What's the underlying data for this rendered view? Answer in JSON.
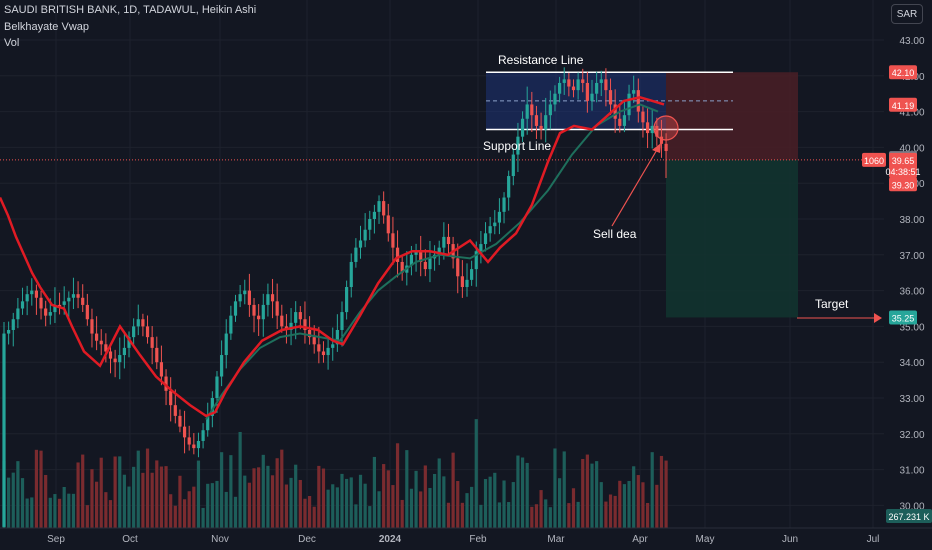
{
  "header": {
    "symbol_line": "SAUDI BRITISH BANK, 1D, TADAWUL, Heikin Ashi",
    "indicator": "Belkhayate Vwap",
    "volume": "Vol"
  },
  "currency": "SAR",
  "colors": {
    "background": "#131722",
    "grid": "#1e222d",
    "up": "#26a69a",
    "down": "#ef5350",
    "up_volume": "#1d5e5a",
    "down_volume": "#7a2b2f",
    "vwap": "#e01b24",
    "ma": "#1e6f5c",
    "range_box": "#1f3a8a",
    "stop_zone": "#4a1f26",
    "target_zone": "#12332f",
    "annotation": "#ffffff"
  },
  "chart_data": {
    "type": "candlestick",
    "y_axis": {
      "ticks": [
        "43.00",
        "42.00",
        "41.00",
        "40.00",
        "39.00",
        "38.00",
        "37.00",
        "36.00",
        "35.00",
        "34.00",
        "33.00",
        "32.00",
        "31.00",
        "30.00"
      ],
      "range": [
        29.7,
        43.5
      ]
    },
    "x_axis": {
      "ticks": [
        "Sep",
        "Oct",
        "Nov",
        "Dec",
        "2024",
        "Feb",
        "Mar",
        "Apr",
        "May",
        "Jun",
        "Jul"
      ]
    },
    "price_labels": [
      {
        "value": "42.10",
        "price": 42.1,
        "color": "#ef5350"
      },
      {
        "value": "41.19",
        "price": 41.19,
        "color": "#ef5350"
      },
      {
        "value": "39.70",
        "price": 39.7,
        "color": "#787b86"
      },
      {
        "value": "39.65",
        "price": 39.65,
        "color": "#ef5350"
      },
      {
        "value": "04:38:51",
        "price": 39.34,
        "color": "#ef5350"
      },
      {
        "value": "39.30",
        "price": 38.97,
        "color": "#ef5350"
      },
      {
        "value": "35.25",
        "price": 35.25,
        "color": "#26a69a"
      }
    ],
    "side_label": "1060",
    "volume_label": "267.231 K",
    "annotations": {
      "resistance": "Resistance Line",
      "support": "Support Line",
      "sell": "Sell dea",
      "target": "Target"
    },
    "levels": {
      "resistance": 42.1,
      "support": 40.5,
      "mid": 41.3,
      "entry": 39.65,
      "target": 35.25
    },
    "candles": {
      "start": 29.4,
      "closes": [
        34.8,
        34.9,
        35.2,
        35.5,
        35.7,
        35.9,
        36.0,
        35.8,
        35.5,
        35.3,
        35.4,
        35.6,
        35.6,
        35.7,
        35.8,
        35.9,
        35.8,
        35.6,
        35.2,
        34.8,
        34.6,
        34.5,
        34.3,
        34.1,
        34.0,
        34.2,
        34.4,
        34.7,
        35.0,
        35.2,
        35.0,
        34.7,
        34.4,
        34.0,
        33.6,
        33.2,
        32.8,
        32.5,
        32.2,
        31.9,
        31.7,
        31.6,
        31.8,
        32.1,
        32.5,
        33.0,
        33.6,
        34.2,
        34.8,
        35.3,
        35.7,
        35.9,
        36.0,
        35.6,
        35.3,
        35.2,
        35.6,
        35.9,
        35.7,
        35.3,
        35.0,
        34.9,
        35.1,
        35.4,
        35.2,
        34.9,
        34.7,
        34.5,
        34.3,
        34.2,
        34.4,
        34.5,
        34.9,
        35.4,
        36.1,
        36.8,
        37.2,
        37.4,
        37.7,
        38.0,
        38.2,
        38.5,
        38.1,
        37.6,
        37.2,
        36.8,
        36.5,
        36.7,
        37.0,
        37.1,
        36.8,
        36.6,
        36.9,
        37.0,
        37.2,
        37.5,
        37.3,
        36.9,
        36.4,
        36.1,
        36.3,
        36.6,
        37.1,
        37.3,
        37.6,
        37.8,
        37.9,
        38.2,
        38.6,
        39.2,
        39.8,
        40.3,
        40.8,
        41.2,
        40.9,
        40.6,
        40.5,
        40.9,
        41.2,
        41.5,
        41.8,
        41.9,
        41.7,
        41.6,
        41.9,
        41.8,
        41.3,
        41.5,
        41.8,
        41.9,
        41.6,
        41.2,
        40.8,
        40.6,
        40.9,
        41.5,
        41.6,
        41.0,
        40.7,
        40.4,
        40.6,
        40.3,
        40.1,
        39.9
      ]
    },
    "vwap_line": [
      [
        0,
        38.6
      ],
      [
        8,
        38.1
      ],
      [
        16,
        37.5
      ],
      [
        24,
        37.0
      ],
      [
        32,
        36.5
      ],
      [
        40,
        36.1
      ],
      [
        52,
        35.6
      ],
      [
        64,
        35.5
      ],
      [
        72,
        35.0
      ],
      [
        84,
        34.3
      ],
      [
        100,
        33.9
      ],
      [
        120,
        35.0
      ],
      [
        140,
        34.2
      ],
      [
        156,
        33.6
      ],
      [
        172,
        33.2
      ],
      [
        190,
        32.8
      ],
      [
        206,
        32.5
      ],
      [
        215,
        32.6
      ],
      [
        226,
        33.2
      ],
      [
        244,
        34.0
      ],
      [
        262,
        34.6
      ],
      [
        282,
        34.9
      ],
      [
        300,
        35.0
      ],
      [
        318,
        34.9
      ],
      [
        333,
        34.6
      ],
      [
        343,
        34.5
      ],
      [
        360,
        35.3
      ],
      [
        378,
        36.2
      ],
      [
        396,
        36.9
      ],
      [
        412,
        37.1
      ],
      [
        430,
        37.1
      ],
      [
        448,
        37.0
      ],
      [
        470,
        37.4
      ],
      [
        488,
        36.8
      ],
      [
        500,
        37.2
      ],
      [
        516,
        37.6
      ],
      [
        532,
        38.4
      ],
      [
        548,
        39.6
      ],
      [
        560,
        40.4
      ],
      [
        574,
        40.6
      ],
      [
        592,
        40.5
      ],
      [
        608,
        40.9
      ],
      [
        624,
        41.3
      ],
      [
        640,
        41.4
      ],
      [
        652,
        41.3
      ],
      [
        664,
        41.2
      ]
    ],
    "ma_line": [
      [
        206,
        32.4
      ],
      [
        222,
        33.1
      ],
      [
        240,
        33.8
      ],
      [
        260,
        34.4
      ],
      [
        280,
        34.7
      ],
      [
        300,
        34.8
      ],
      [
        320,
        34.7
      ],
      [
        340,
        34.6
      ],
      [
        360,
        35.4
      ],
      [
        378,
        36.0
      ],
      [
        396,
        36.4
      ],
      [
        416,
        36.8
      ],
      [
        440,
        37.0
      ],
      [
        470,
        36.9
      ],
      [
        496,
        37.3
      ],
      [
        520,
        37.9
      ],
      [
        548,
        38.8
      ],
      [
        572,
        39.8
      ],
      [
        596,
        40.6
      ],
      [
        620,
        41.0
      ],
      [
        640,
        41.2
      ],
      [
        658,
        41.0
      ]
    ]
  }
}
